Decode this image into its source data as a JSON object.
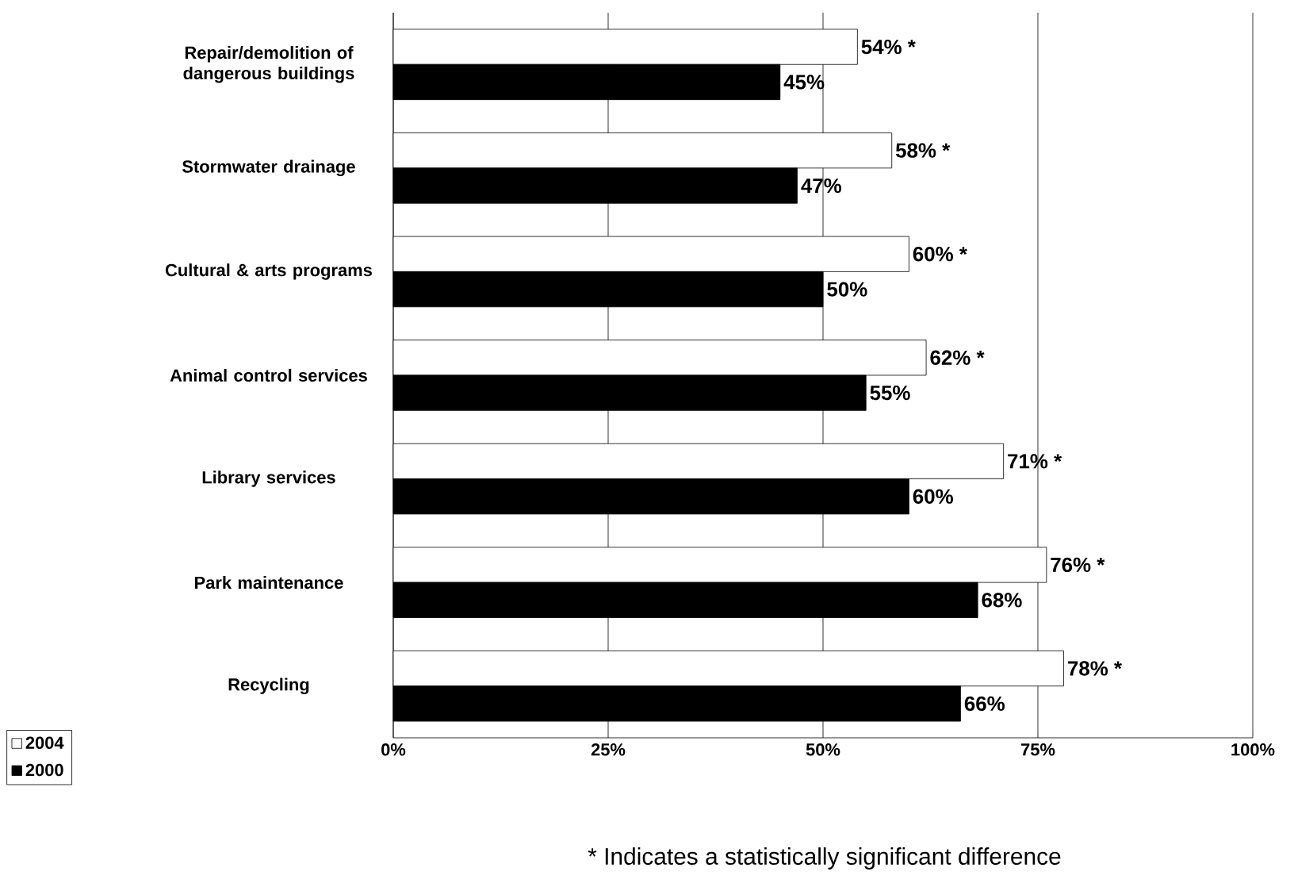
{
  "chart_data": {
    "type": "bar",
    "orientation": "horizontal",
    "categories": [
      "Repair/demolition of dangerous buildings",
      "Stormwater drainage",
      "Cultural & arts programs",
      "Animal control services",
      "Library services",
      "Park maintenance",
      "Recycling"
    ],
    "series": [
      {
        "name": "2004",
        "color": "#ffffff",
        "values": [
          54,
          58,
          60,
          62,
          71,
          76,
          78
        ],
        "value_labels": [
          "54% *",
          "58% *",
          "60% *",
          "62% *",
          "71% *",
          "76% *",
          "78% *"
        ]
      },
      {
        "name": "2000",
        "color": "#000000",
        "values": [
          45,
          47,
          50,
          55,
          60,
          68,
          66
        ],
        "value_labels": [
          "45%",
          "47%",
          "50%",
          "55%",
          "60%",
          "68%",
          "66%"
        ]
      }
    ],
    "xlim": [
      0,
      100
    ],
    "xticks": [
      {
        "value": 0,
        "label": "0%"
      },
      {
        "value": 25,
        "label": "25%"
      },
      {
        "value": 50,
        "label": "50%"
      },
      {
        "value": 75,
        "label": "75%"
      },
      {
        "value": 100,
        "label": "100%"
      }
    ],
    "grid": "x",
    "legend": "bottom left",
    "annotations": [
      "* Indicates a statistically significant difference"
    ]
  }
}
